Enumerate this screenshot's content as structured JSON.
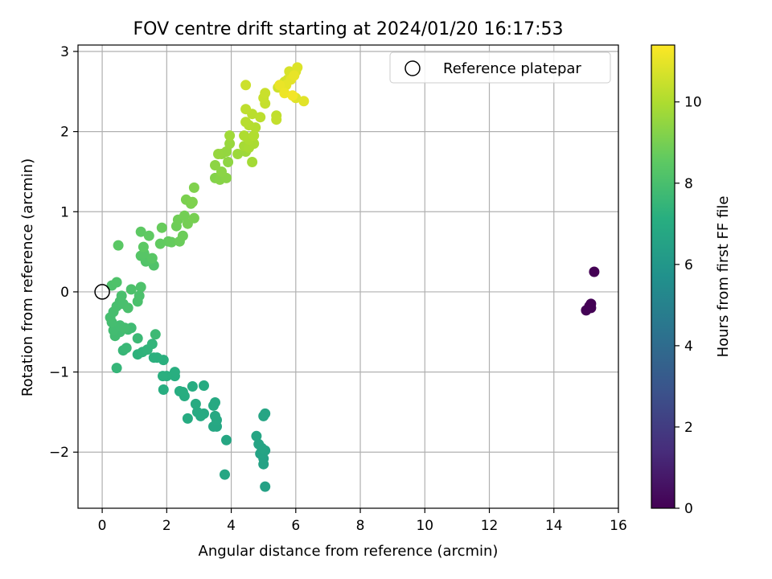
{
  "chart_data": {
    "type": "scatter",
    "title": "FOV centre drift starting at 2024/01/20 16:17:53",
    "xlabel": "Angular distance from reference (arcmin)",
    "ylabel": "Rotation from reference (arcmin)",
    "xlim": [
      -0.75,
      16.0
    ],
    "ylim": [
      -2.7,
      3.08
    ],
    "xticks": [
      0,
      2,
      4,
      6,
      8,
      10,
      12,
      14,
      16
    ],
    "yticks": [
      -2,
      -1,
      0,
      1,
      2,
      3
    ],
    "xtick_labels": [
      "0",
      "2",
      "4",
      "6",
      "8",
      "10",
      "12",
      "14",
      "16"
    ],
    "ytick_labels": [
      "−2",
      "−1",
      "0",
      "1",
      "2",
      "3"
    ],
    "grid": true,
    "legend": {
      "placement": "top-right",
      "label": "Reference platepar",
      "marker": "open-circle"
    },
    "reference_point": [
      0,
      0
    ],
    "colorbar": {
      "label": "Hours from first FF file",
      "min": 0,
      "max": 11.4,
      "ticks": [
        0,
        2,
        4,
        6,
        8,
        10
      ],
      "tick_labels": [
        "0",
        "2",
        "4",
        "6",
        "8",
        "10"
      ],
      "colormap": "viridis"
    },
    "points": [
      [
        15.25,
        0.25,
        0.0
      ],
      [
        15.15,
        -0.15,
        0.02
      ],
      [
        15.1,
        -0.18,
        0.03
      ],
      [
        15.15,
        -0.2,
        0.04
      ],
      [
        15.0,
        -0.23,
        0.05
      ],
      [
        5.05,
        -2.43,
        6.5
      ],
      [
        5.0,
        -2.15,
        6.52
      ],
      [
        5.0,
        -2.08,
        6.55
      ],
      [
        4.9,
        -2.02,
        6.57
      ],
      [
        5.05,
        -1.98,
        6.6
      ],
      [
        4.95,
        -1.95,
        6.62
      ],
      [
        4.85,
        -1.9,
        6.64
      ],
      [
        4.78,
        -1.8,
        6.66
      ],
      [
        5.0,
        -1.55,
        6.68
      ],
      [
        5.05,
        -1.52,
        6.7
      ],
      [
        3.8,
        -2.28,
        6.72
      ],
      [
        3.85,
        -1.85,
        6.75
      ],
      [
        3.55,
        -1.68,
        6.78
      ],
      [
        3.45,
        -1.68,
        6.8
      ],
      [
        3.55,
        -1.6,
        6.82
      ],
      [
        3.5,
        -1.55,
        6.84
      ],
      [
        3.45,
        -1.42,
        6.86
      ],
      [
        3.5,
        -1.38,
        6.88
      ],
      [
        3.15,
        -1.52,
        6.9
      ],
      [
        3.05,
        -1.55,
        6.92
      ],
      [
        2.95,
        -1.5,
        6.94
      ],
      [
        2.9,
        -1.4,
        6.96
      ],
      [
        2.65,
        -1.58,
        6.98
      ],
      [
        3.15,
        -1.17,
        7.0
      ],
      [
        2.8,
        -1.18,
        7.02
      ],
      [
        2.55,
        -1.3,
        7.04
      ],
      [
        2.4,
        -1.24,
        7.06
      ],
      [
        2.5,
        -1.25,
        7.08
      ],
      [
        1.9,
        -1.22,
        7.1
      ],
      [
        2.25,
        -1.05,
        7.12
      ],
      [
        2.25,
        -1.0,
        7.14
      ],
      [
        2.0,
        -1.05,
        7.16
      ],
      [
        1.88,
        -1.05,
        7.18
      ],
      [
        1.9,
        -0.85,
        7.2
      ],
      [
        1.7,
        -0.82,
        7.22
      ],
      [
        1.6,
        -0.82,
        7.24
      ],
      [
        1.1,
        -0.78,
        7.3
      ],
      [
        1.25,
        -0.75,
        7.34
      ],
      [
        1.4,
        -0.72,
        7.38
      ],
      [
        1.55,
        -0.65,
        7.42
      ],
      [
        0.45,
        -0.95,
        7.5
      ],
      [
        0.65,
        -0.73,
        7.55
      ],
      [
        0.75,
        -0.7,
        7.6
      ],
      [
        1.1,
        -0.58,
        7.65
      ],
      [
        1.65,
        -0.53,
        7.7
      ],
      [
        0.9,
        -0.45,
        7.75
      ],
      [
        0.8,
        -0.47,
        7.78
      ],
      [
        0.55,
        -0.5,
        7.8
      ],
      [
        0.4,
        -0.55,
        7.82
      ],
      [
        0.35,
        -0.48,
        7.84
      ],
      [
        0.55,
        -0.42,
        7.86
      ],
      [
        0.7,
        -0.45,
        7.88
      ],
      [
        0.3,
        -0.38,
        7.9
      ],
      [
        0.25,
        -0.32,
        7.92
      ],
      [
        0.35,
        -0.25,
        7.94
      ],
      [
        0.45,
        -0.18,
        7.96
      ],
      [
        0.55,
        -0.12,
        7.98
      ],
      [
        0.65,
        -0.15,
        8.0
      ],
      [
        0.6,
        -0.05,
        8.02
      ],
      [
        0.8,
        -0.2,
        8.04
      ],
      [
        1.1,
        -0.12,
        8.06
      ],
      [
        1.15,
        -0.05,
        8.08
      ],
      [
        0.9,
        0.03,
        8.1
      ],
      [
        1.2,
        0.06,
        8.12
      ],
      [
        0.3,
        0.08,
        8.14
      ],
      [
        0.45,
        0.12,
        8.16
      ],
      [
        1.6,
        0.33,
        8.2
      ],
      [
        1.35,
        0.38,
        8.24
      ],
      [
        1.45,
        0.4,
        8.28
      ],
      [
        1.2,
        0.45,
        8.32
      ],
      [
        1.3,
        0.48,
        8.36
      ],
      [
        1.55,
        0.42,
        8.4
      ],
      [
        0.5,
        0.58,
        8.44
      ],
      [
        1.28,
        0.56,
        8.48
      ],
      [
        1.2,
        0.75,
        8.52
      ],
      [
        1.45,
        0.7,
        8.56
      ],
      [
        1.8,
        0.6,
        8.6
      ],
      [
        2.05,
        0.63,
        8.64
      ],
      [
        2.15,
        0.62,
        8.68
      ],
      [
        1.85,
        0.8,
        8.72
      ],
      [
        2.4,
        0.63,
        8.76
      ],
      [
        2.5,
        0.7,
        8.8
      ],
      [
        2.3,
        0.82,
        8.84
      ],
      [
        2.35,
        0.9,
        8.88
      ],
      [
        2.55,
        0.95,
        8.92
      ],
      [
        2.65,
        0.85,
        8.96
      ],
      [
        2.85,
        0.92,
        9.0
      ],
      [
        2.75,
        1.1,
        9.04
      ],
      [
        2.6,
        1.15,
        9.08
      ],
      [
        2.8,
        1.12,
        9.12
      ],
      [
        2.85,
        1.3,
        9.16
      ],
      [
        3.5,
        1.42,
        9.22
      ],
      [
        3.65,
        1.4,
        9.28
      ],
      [
        3.85,
        1.42,
        9.32
      ],
      [
        3.7,
        1.5,
        9.36
      ],
      [
        3.5,
        1.58,
        9.4
      ],
      [
        3.9,
        1.62,
        9.44
      ],
      [
        3.7,
        1.72,
        9.48
      ],
      [
        3.85,
        1.75,
        9.52
      ],
      [
        3.6,
        1.72,
        9.56
      ],
      [
        3.95,
        1.85,
        9.6
      ],
      [
        4.2,
        1.72,
        9.66
      ],
      [
        4.45,
        1.75,
        9.7
      ],
      [
        3.95,
        1.95,
        9.74
      ],
      [
        4.65,
        1.62,
        9.8
      ],
      [
        4.4,
        1.82,
        9.84
      ],
      [
        4.55,
        1.8,
        9.88
      ],
      [
        4.7,
        1.85,
        9.92
      ],
      [
        4.55,
        1.9,
        9.96
      ],
      [
        4.4,
        1.95,
        10.0
      ],
      [
        4.7,
        1.95,
        10.04
      ],
      [
        4.75,
        2.05,
        10.08
      ],
      [
        4.55,
        2.08,
        10.12
      ],
      [
        4.45,
        2.12,
        10.16
      ],
      [
        4.65,
        2.22,
        10.2
      ],
      [
        4.9,
        2.18,
        10.24
      ],
      [
        4.45,
        2.28,
        10.28
      ],
      [
        5.4,
        2.2,
        10.32
      ],
      [
        5.4,
        2.15,
        10.36
      ],
      [
        5.05,
        2.35,
        10.4
      ],
      [
        5.0,
        2.42,
        10.44
      ],
      [
        5.05,
        2.48,
        10.48
      ],
      [
        4.45,
        2.58,
        10.52
      ],
      [
        5.45,
        2.55,
        10.56
      ],
      [
        5.6,
        2.55,
        10.6
      ],
      [
        5.65,
        2.62,
        10.64
      ],
      [
        5.75,
        2.65,
        10.68
      ],
      [
        5.8,
        2.75,
        10.72
      ],
      [
        6.0,
        2.75,
        10.76
      ],
      [
        6.05,
        2.8,
        10.82
      ],
      [
        6.0,
        2.42,
        10.86
      ],
      [
        6.25,
        2.38,
        10.9
      ],
      [
        5.85,
        2.65,
        10.94
      ],
      [
        5.7,
        2.58,
        10.98
      ],
      [
        5.95,
        2.7,
        11.02
      ],
      [
        5.5,
        2.58,
        11.06
      ],
      [
        5.65,
        2.48,
        11.12
      ],
      [
        5.9,
        2.45,
        11.2
      ]
    ]
  }
}
